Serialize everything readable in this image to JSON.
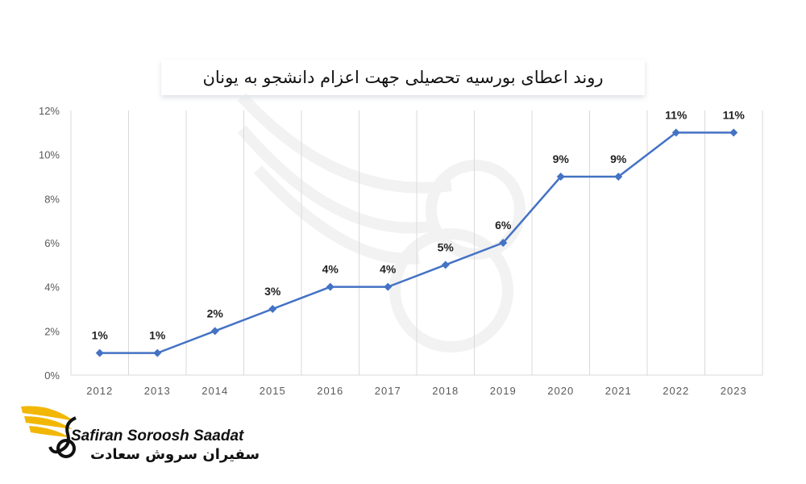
{
  "chart_data": {
    "type": "line",
    "title": "روند اعطای بورسیه تحصیلی جهت اعزام دانشجو به یونان",
    "categories": [
      "2012",
      "2013",
      "2014",
      "2015",
      "2016",
      "2017",
      "2018",
      "2019",
      "2020",
      "2021",
      "2022",
      "2023"
    ],
    "values": [
      1,
      1,
      2,
      3,
      4,
      4,
      5,
      6,
      9,
      9,
      11,
      11
    ],
    "data_labels": [
      "1%",
      "1%",
      "2%",
      "3%",
      "4%",
      "4%",
      "5%",
      "6%",
      "9%",
      "9%",
      "11%",
      "11%"
    ],
    "yticks": [
      "0%",
      "2%",
      "4%",
      "6%",
      "8%",
      "10%",
      "12%"
    ],
    "ylim": [
      0,
      12
    ],
    "grid": "vertical",
    "marker": "diamond",
    "color": "#4472C4"
  },
  "brand": {
    "name_en": "Safiran Soroosh Saadat",
    "name_fa": "سفیران سروش سعادت",
    "accent": "#F2B705"
  }
}
